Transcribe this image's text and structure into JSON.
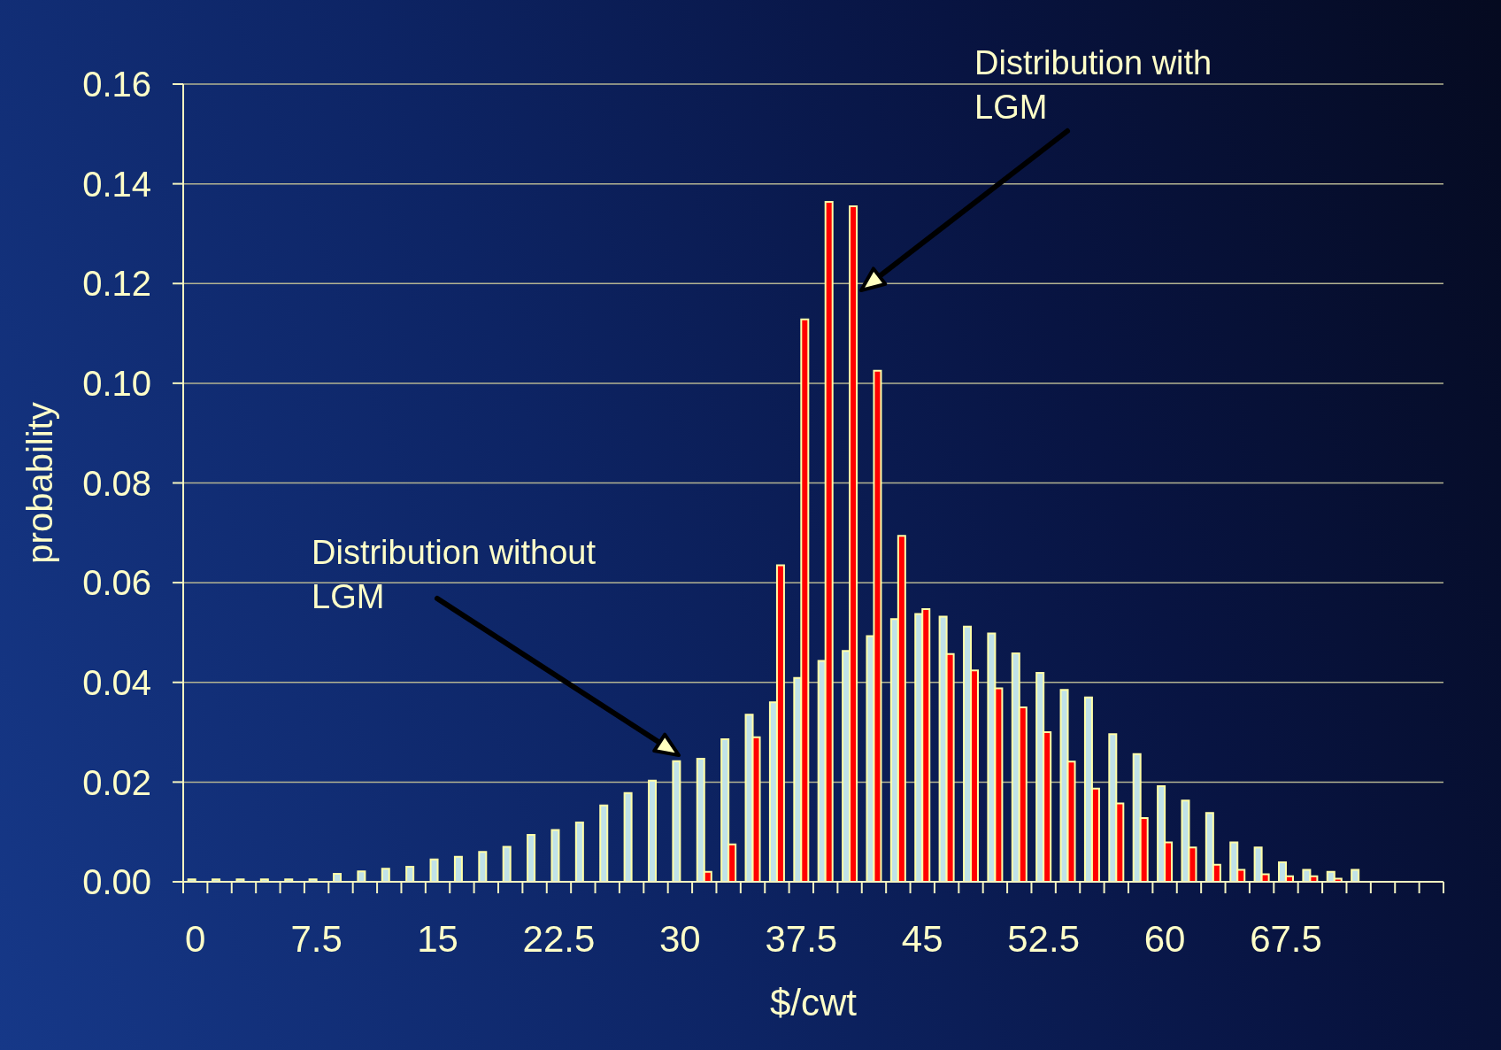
{
  "chart_data": {
    "type": "bar",
    "xlabel": "$/cwt",
    "ylabel": "probability",
    "categories": [
      "0",
      null,
      null,
      null,
      null,
      "7.5",
      null,
      null,
      null,
      null,
      "15",
      null,
      null,
      null,
      null,
      "22.5",
      null,
      null,
      null,
      null,
      "30",
      null,
      null,
      null,
      null,
      "37.5",
      null,
      null,
      null,
      null,
      "45",
      null,
      null,
      null,
      null,
      "52.5",
      null,
      null,
      null,
      null,
      "60",
      null,
      null,
      null,
      null,
      "67.5",
      null,
      null,
      null,
      null,
      null,
      null
    ],
    "series": [
      {
        "color": "#c0e2e8",
        "values": [
          0.0005,
          0.0005,
          0.0005,
          0.0005,
          0.0005,
          0.0005,
          0.0016,
          0.0021,
          0.0026,
          0.003,
          0.0045,
          0.005,
          0.006,
          0.007,
          0.0094,
          0.0104,
          0.0119,
          0.0153,
          0.0178,
          0.0203,
          0.0242,
          0.0247,
          0.0286,
          0.0335,
          0.036,
          0.0409,
          0.0443,
          0.0463,
          0.0493,
          0.0527,
          0.0537,
          0.0532,
          0.0512,
          0.0498,
          0.0458,
          0.0419,
          0.0385,
          0.037,
          0.0296,
          0.0256,
          0.0192,
          0.0163,
          0.0138,
          0.0079,
          0.0069,
          0.0039,
          0.0024,
          0.002,
          0.0024,
          null,
          null,
          null
        ]
      },
      {
        "color": "#ff0000",
        "values": [
          null,
          null,
          null,
          null,
          null,
          null,
          null,
          null,
          null,
          null,
          null,
          null,
          null,
          null,
          null,
          null,
          null,
          null,
          null,
          null,
          null,
          0.002,
          0.0075,
          0.029,
          0.0635,
          0.1128,
          0.1364,
          0.1355,
          0.1025,
          0.0694,
          0.0547,
          0.0457,
          0.0424,
          0.0388,
          0.035,
          0.03,
          0.0241,
          0.0187,
          0.0157,
          0.0128,
          0.0079,
          0.0069,
          0.0034,
          0.0024,
          0.0015,
          0.0011,
          0.0011,
          0.0006,
          null,
          null,
          null,
          null
        ]
      }
    ],
    "ylim": [
      0,
      0.16
    ],
    "yticks": [
      {
        "value": 0,
        "label": "0.00"
      },
      {
        "value": 0.02,
        "label": "0.02"
      },
      {
        "value": 0.04,
        "label": "0.04"
      },
      {
        "value": 0.06,
        "label": "0.06"
      },
      {
        "value": 0.08,
        "label": "0.08"
      },
      {
        "value": 0.1,
        "label": "0.10"
      },
      {
        "value": 0.12,
        "label": "0.12"
      },
      {
        "value": 0.14,
        "label": "0.14"
      },
      {
        "value": 0.16,
        "label": "0.16"
      }
    ],
    "grid": "y",
    "annotations": [
      "Distribution with LGM",
      "Distribution without LGM"
    ]
  }
}
